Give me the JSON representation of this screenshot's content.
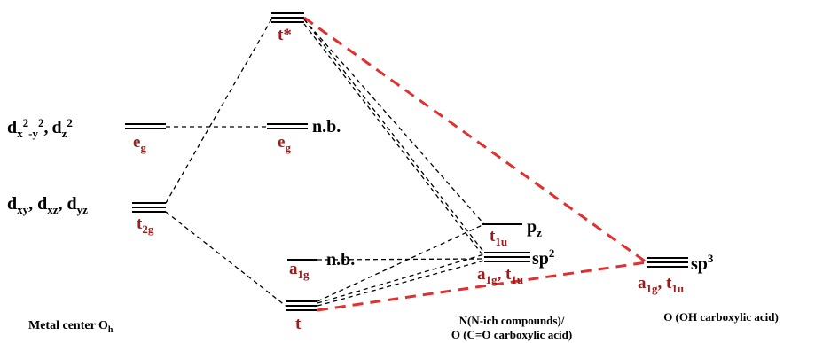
{
  "colors": {
    "black": "#000000",
    "red_label": "#9b1c1c",
    "red_line": "#e03030"
  },
  "left_levels": {
    "dx2y2_dz2": {
      "d": "d",
      "x": "x",
      "sup1": "2",
      "dash": "-y",
      "sup2": "2",
      "comma": ",",
      "dz": "d",
      "z": "z",
      "sup3": "2",
      "sym": "e",
      "sym_sub": "g"
    },
    "dxy_dxz_dyz": {
      "text": "d",
      "xy": "xy",
      "c1": ", d",
      "xz": "xz",
      "c2": ", d",
      "yz": "yz",
      "sym": "t",
      "sym_sub": "2g"
    }
  },
  "middle_levels": {
    "t_star": "t*",
    "eg_nb": {
      "sym": "e",
      "sym_sub": "g",
      "label": "n.b."
    },
    "a1g_nb": {
      "sym": "a",
      "sym_sub": "1g",
      "label": "n.b."
    },
    "t": "t"
  },
  "n_levels": {
    "pz": {
      "label": "p",
      "label_sub": "z",
      "sym": "t",
      "sym_sub": "1u"
    },
    "sp2": {
      "label": "sp",
      "label_sup": "2",
      "sym_a": "a",
      "sym_a_sub": "1g",
      "comma": ", t",
      "sym_t_sub": "1u"
    }
  },
  "o_levels": {
    "sp3": {
      "label": "sp",
      "label_sup": "3",
      "sym_a": "a",
      "sym_a_sub": "1g",
      "comma": ", t",
      "sym_t_sub": "1u"
    }
  },
  "captions": {
    "metal": "Metal center O",
    "metal_sub": "h",
    "n_line1": "N(N-ich compounds)/",
    "n_line2": "O (C=O carboxylic acid)",
    "o": "O (OH carboxylic acid)"
  }
}
